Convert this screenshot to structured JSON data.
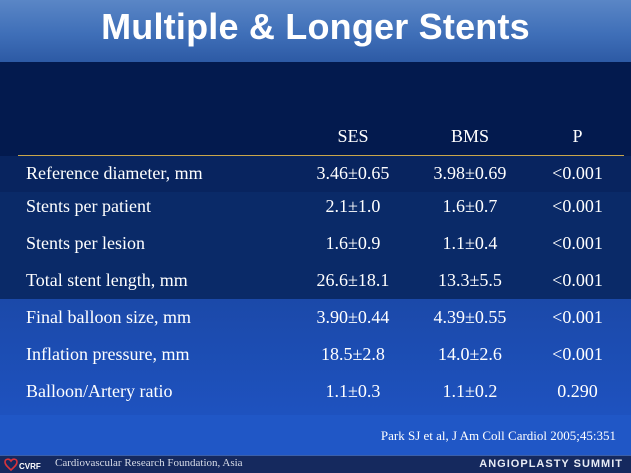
{
  "slide": {
    "title": "Multiple & Longer Stents"
  },
  "table": {
    "headers": {
      "ses": "SES",
      "bms": "BMS",
      "p": "P"
    },
    "rows": [
      {
        "label": "Reference diameter, mm",
        "ses": "3.46±0.65",
        "bms": "3.98±0.69",
        "p": "<0.001"
      },
      {
        "label": "Stents per patient",
        "ses": "2.1±1.0",
        "bms": "1.6±0.7",
        "p": "<0.001"
      },
      {
        "label": "Stents per lesion",
        "ses": "1.6±0.9",
        "bms": "1.1±0.4",
        "p": "<0.001"
      },
      {
        "label": "Total stent length, mm",
        "ses": "26.6±18.1",
        "bms": "13.3±5.5",
        "p": "<0.001"
      },
      {
        "label": "Final balloon size, mm",
        "ses": "3.90±0.44",
        "bms": "4.39±0.55",
        "p": "<0.001"
      },
      {
        "label": "Inflation pressure, mm",
        "ses": "18.5±2.8",
        "bms": "14.0±2.6",
        "p": "<0.001"
      },
      {
        "label": "Balloon/Artery ratio",
        "ses": "1.1±0.3",
        "bms": "1.1±0.2",
        "p": "0.290"
      }
    ]
  },
  "citation": "Park SJ et al, J Am Coll Cardiol 2005;45:351",
  "footer": {
    "logo_text": "CVRF",
    "organization": "Cardiovascular Research Foundation, Asia",
    "brand": "ANGIOPLASTY SUMMIT"
  },
  "colors": {
    "title_bar": "#3f6fb8",
    "rule": "#c9a64a",
    "logo_heart": "#d8333a"
  }
}
